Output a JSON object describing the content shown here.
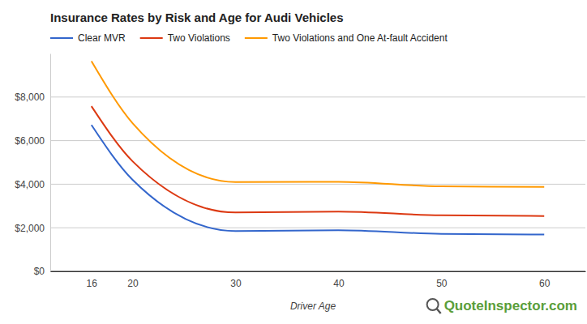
{
  "chart_data": {
    "type": "line",
    "title": "Insurance Rates by Risk and Age for Audi Vehicles",
    "x_label": "Driver Age",
    "annotations": [
      "QuoteInspector.com"
    ],
    "x": [
      16,
      20,
      30,
      40,
      50,
      60
    ],
    "series": [
      {
        "name": "Clear MVR",
        "color": "#3366cc",
        "values": [
          6720,
          4200,
          1850,
          1890,
          1720,
          1690
        ]
      },
      {
        "name": "Two Violations",
        "color": "#dc3912",
        "values": [
          7580,
          5050,
          2700,
          2740,
          2570,
          2540
        ]
      },
      {
        "name": "Two Violations and One At-fault Accident",
        "color": "#ff9900",
        "values": [
          9650,
          6800,
          4100,
          4110,
          3900,
          3880
        ]
      }
    ],
    "xlim": [
      12,
      64
    ],
    "xticks": [
      16,
      20,
      30,
      40,
      50,
      60
    ],
    "ylim": [
      0,
      10000
    ],
    "yticks": [
      {
        "value": 0,
        "label": "$0"
      },
      {
        "value": 2000,
        "label": "$2,000"
      },
      {
        "value": 4000,
        "label": "$4,000"
      },
      {
        "value": 6000,
        "label": "$6,000"
      },
      {
        "value": 8000,
        "label": "$8,000"
      }
    ],
    "grid": true,
    "legend": "top"
  }
}
